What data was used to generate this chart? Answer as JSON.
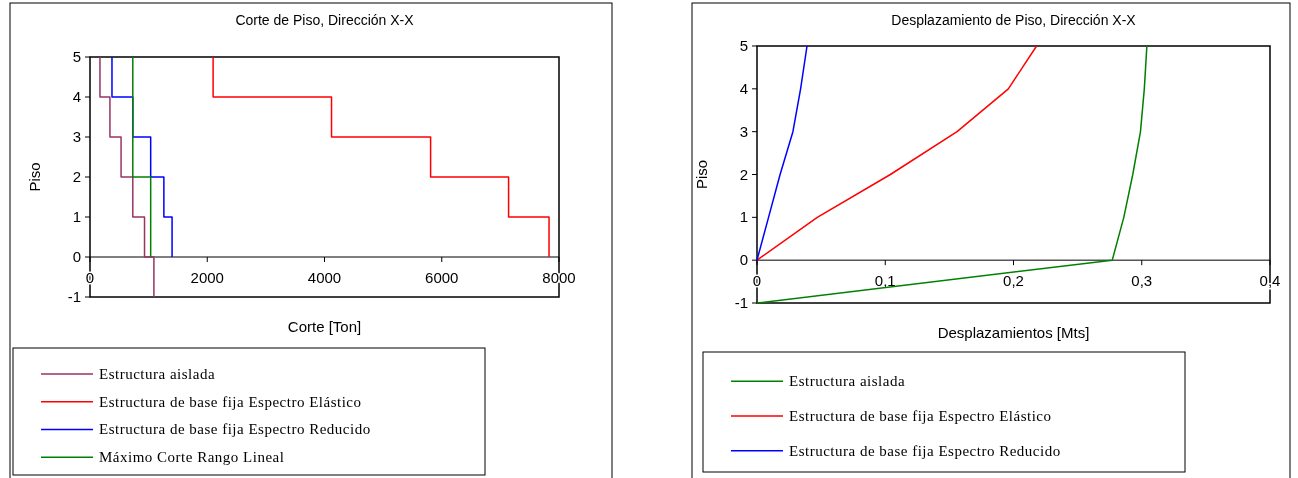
{
  "chart_data": [
    {
      "type": "line",
      "title": "Corte de Piso, Dirección X-X",
      "xlabel": "Corte [Ton]",
      "ylabel": "Piso",
      "xlim": [
        0,
        8000
      ],
      "xticks": [
        0,
        2000,
        4000,
        6000,
        8000
      ],
      "ylim": [
        -1,
        5
      ],
      "yticks": [
        -1,
        0,
        1,
        2,
        3,
        4,
        5
      ],
      "grid": false,
      "legend": "bottom",
      "series": [
        {
          "name": "Estructura aislada",
          "color": "#993366",
          "x": [
            170,
            170,
            340,
            340,
            530,
            530,
            730,
            730,
            930,
            930,
            1090,
            1090
          ],
          "values": [
            5,
            4,
            4,
            3,
            3,
            2,
            2,
            1,
            1,
            0,
            0,
            -1
          ]
        },
        {
          "name": "Estructura de base fija Espectro Elástico",
          "color": "#ff0000",
          "x": [
            2100,
            2100,
            4120,
            4120,
            5810,
            5810,
            7140,
            7140,
            7830,
            7830
          ],
          "values": [
            5,
            4,
            4,
            3,
            3,
            2,
            2,
            1,
            1,
            0
          ]
        },
        {
          "name": "Estructura de base fija Espectro Reducido",
          "color": "#0000ff",
          "x": [
            375,
            375,
            730,
            730,
            1035,
            1035,
            1260,
            1260,
            1400,
            1400
          ],
          "values": [
            5,
            4,
            4,
            3,
            3,
            2,
            2,
            1,
            1,
            0
          ]
        },
        {
          "name": "Máximo Corte Rango Lineal",
          "color": "#008000",
          "x": [
            730,
            730,
            1035,
            1035
          ],
          "values": [
            5,
            2,
            2,
            0
          ]
        }
      ]
    },
    {
      "type": "line",
      "title": "Desplazamiento de Piso, Dirección X-X",
      "xlabel": "Desplazamientos [Mts]",
      "ylabel": "Piso",
      "xlim": [
        0,
        0.4
      ],
      "xticks": [
        0,
        {
          "value": 0.1,
          "label": "0,1"
        },
        {
          "value": 0.2,
          "label": "0,2"
        },
        {
          "value": 0.3,
          "label": "0,3"
        },
        {
          "value": 0.4,
          "label": "0,4"
        }
      ],
      "ylim": [
        -1,
        5
      ],
      "yticks": [
        -1,
        0,
        1,
        2,
        3,
        4,
        5
      ],
      "grid": false,
      "legend": "bottom",
      "series": [
        {
          "name": "Estructura aislada",
          "color": "#008000",
          "x": [
            0,
            0.277,
            0.286,
            0.293,
            0.299,
            0.302,
            0.304
          ],
          "values": [
            -1,
            0,
            1,
            2,
            3,
            4,
            5
          ]
        },
        {
          "name": "Estructura de base fija Espectro Elástico",
          "color": "#ff0000",
          "x": [
            0,
            0.047,
            0.104,
            0.156,
            0.196,
            0.218
          ],
          "values": [
            0,
            1,
            2,
            3,
            4,
            5
          ]
        },
        {
          "name": "Estructura de base fija Espectro Reducido",
          "color": "#0000ff",
          "x": [
            0,
            0.009,
            0.018,
            0.028,
            0.034,
            0.039
          ],
          "values": [
            0,
            1,
            2,
            3,
            4,
            5
          ]
        }
      ]
    }
  ]
}
